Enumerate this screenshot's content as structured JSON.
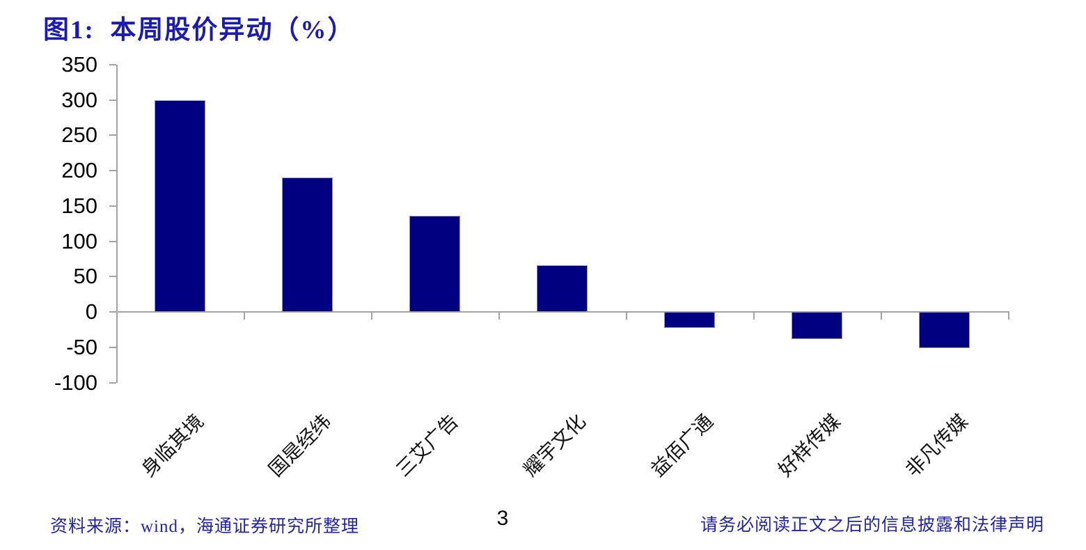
{
  "title": "图1:  本周股价异动（%）",
  "chart_data": {
    "type": "bar",
    "title": "图1:  本周股价异动（%）",
    "categories": [
      "身临其境",
      "国是经纬",
      "三艾广告",
      "耀宇文化",
      "益佰广通",
      "好样传媒",
      "非凡传媒"
    ],
    "values": [
      300,
      190,
      136,
      66,
      -23,
      -38,
      -51
    ],
    "xlabel": "",
    "ylabel": "",
    "ylim": [
      -100,
      350
    ],
    "ytick_step": 50,
    "grid": false,
    "legend_position": "none",
    "x_label_rotation_deg": 45,
    "bar_color": "#000080",
    "axis_color": "#a3a3a3"
  },
  "footer": {
    "source": "资料来源：wind，海通证券研究所整理",
    "page_number": "3",
    "disclaimer": "请务必阅读正文之后的信息披露和法律声明"
  }
}
